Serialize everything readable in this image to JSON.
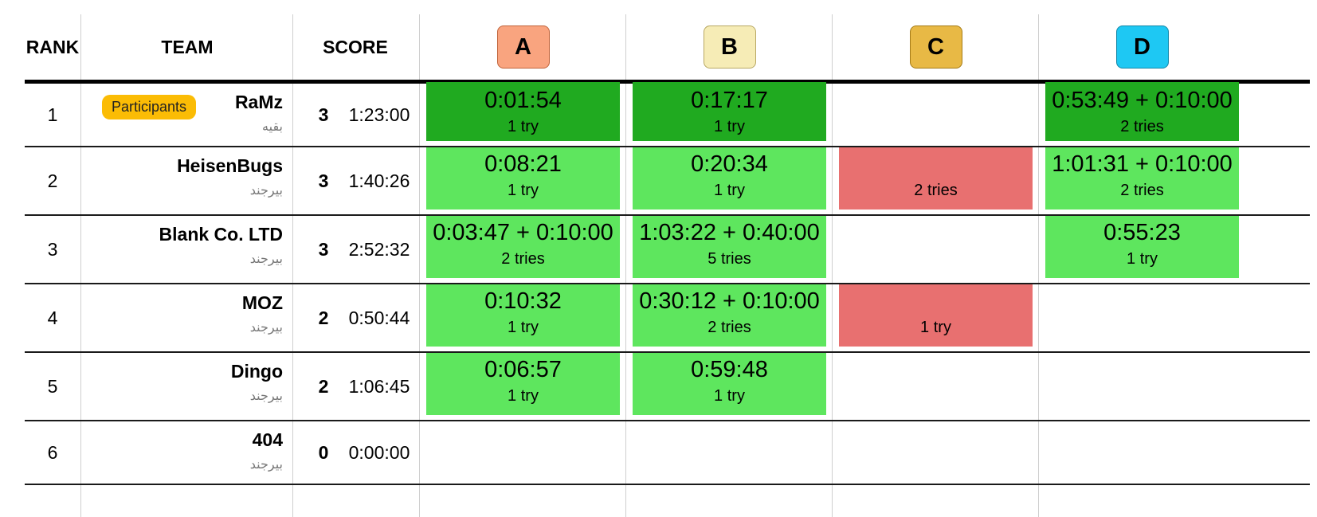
{
  "header": {
    "rank": "RANK",
    "team": "TEAM",
    "score": "SCORE",
    "problems": [
      {
        "label": "A",
        "bg": "#f9a47f",
        "border": "#c0633a"
      },
      {
        "label": "B",
        "bg": "#f6ecb6",
        "border": "#b8a864"
      },
      {
        "label": "C",
        "bg": "#e8b945",
        "border": "#a57b16"
      },
      {
        "label": "D",
        "bg": "#1ec8f3",
        "border": "#1287a8"
      }
    ]
  },
  "colors": {
    "first_solve": "#20aa20",
    "solved": "#5ee65e",
    "failed": "#e87070"
  },
  "rows": [
    {
      "rank": "1",
      "team": "RaMz",
      "affiliation": "بقیه",
      "badge": "Participants",
      "score": "3",
      "penalty": "1:23:00",
      "cells": [
        {
          "time": "0:01:54",
          "tries": "1 try",
          "status": "first_solve"
        },
        {
          "time": "0:17:17",
          "tries": "1 try",
          "status": "first_solve"
        },
        null,
        {
          "time": "0:53:49 + 0:10:00",
          "tries": "2 tries",
          "status": "first_solve"
        }
      ]
    },
    {
      "rank": "2",
      "team": "HeisenBugs",
      "affiliation": "بیرجند",
      "score": "3",
      "penalty": "1:40:26",
      "cells": [
        {
          "time": "0:08:21",
          "tries": "1 try",
          "status": "solved"
        },
        {
          "time": "0:20:34",
          "tries": "1 try",
          "status": "solved"
        },
        {
          "time": "",
          "tries": "2 tries",
          "status": "failed"
        },
        {
          "time": "1:01:31 + 0:10:00",
          "tries": "2 tries",
          "status": "solved"
        }
      ]
    },
    {
      "rank": "3",
      "team": "Blank Co. LTD",
      "affiliation": "بیرجند",
      "score": "3",
      "penalty": "2:52:32",
      "cells": [
        {
          "time": "0:03:47 + 0:10:00",
          "tries": "2 tries",
          "status": "solved"
        },
        {
          "time": "1:03:22 + 0:40:00",
          "tries": "5 tries",
          "status": "solved"
        },
        null,
        {
          "time": "0:55:23",
          "tries": "1 try",
          "status": "solved"
        }
      ]
    },
    {
      "rank": "4",
      "team": "MOZ",
      "affiliation": "بیرجند",
      "score": "2",
      "penalty": "0:50:44",
      "cells": [
        {
          "time": "0:10:32",
          "tries": "1 try",
          "status": "solved"
        },
        {
          "time": "0:30:12 + 0:10:00",
          "tries": "2 tries",
          "status": "solved"
        },
        {
          "time": "",
          "tries": "1 try",
          "status": "failed"
        },
        null
      ]
    },
    {
      "rank": "5",
      "team": "Dingo",
      "affiliation": "بیرجند",
      "score": "2",
      "penalty": "1:06:45",
      "cells": [
        {
          "time": "0:06:57",
          "tries": "1 try",
          "status": "solved"
        },
        {
          "time": "0:59:48",
          "tries": "1 try",
          "status": "solved"
        },
        null,
        null
      ]
    },
    {
      "rank": "6",
      "team": "404",
      "affiliation": "بیرجند",
      "score": "0",
      "penalty": "0:00:00",
      "cells": [
        null,
        null,
        null,
        null
      ]
    }
  ]
}
